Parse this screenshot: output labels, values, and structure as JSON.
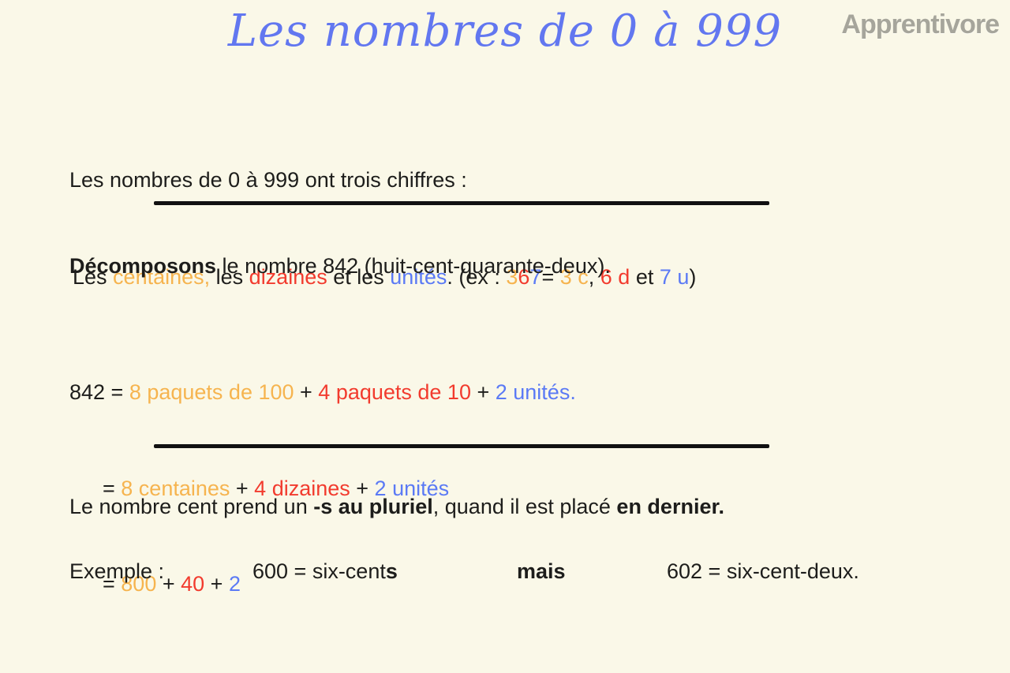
{
  "palette": {
    "background": "#FAF8E8",
    "ink": "#1d1d1b",
    "orange": "#F6B44F",
    "red": "#F23B2E",
    "blue": "#5B7AF5",
    "title_blue": "#6277F0",
    "logo_gray": "#A6A59B",
    "divider": "#111111"
  },
  "header": {
    "title": "Les nombres de 0 à 999",
    "logo": "Apprentivore"
  },
  "intro": {
    "line1": "Les nombres de 0 à 999 ont trois chiffres :",
    "line2_segments": [
      {
        "text": "Les ",
        "color": "ink"
      },
      {
        "text": "centaines,",
        "color": "orange"
      },
      {
        "text": " les ",
        "color": "ink"
      },
      {
        "text": "dizaines",
        "color": "red"
      },
      {
        "text": " et les ",
        "color": "ink"
      },
      {
        "text": "unités",
        "color": "blue"
      },
      {
        "text": ". (ex : ",
        "color": "ink"
      },
      {
        "text": "3",
        "color": "orange"
      },
      {
        "text": "6",
        "color": "red"
      },
      {
        "text": "7",
        "color": "blue"
      },
      {
        "text": "= ",
        "color": "ink"
      },
      {
        "text": "3 c",
        "color": "orange"
      },
      {
        "text": ", ",
        "color": "ink"
      },
      {
        "text": "6 d",
        "color": "red"
      },
      {
        "text": " et ",
        "color": "ink"
      },
      {
        "text": "7 u",
        "color": "blue"
      },
      {
        "text": ")",
        "color": "ink"
      }
    ]
  },
  "decomposition": {
    "heading_segments": [
      {
        "text": "Décomposons",
        "color": "ink",
        "bold": true
      },
      {
        "text": " le nombre 842 (huit-cent-quarante-deux).",
        "color": "ink"
      }
    ],
    "line1_segments": [
      {
        "text": "842 = ",
        "color": "ink"
      },
      {
        "text": "8 paquets de 100",
        "color": "orange"
      },
      {
        "text": " + ",
        "color": "ink"
      },
      {
        "text": "4 paquets de 10",
        "color": "red"
      },
      {
        "text": " + ",
        "color": "ink"
      },
      {
        "text": "2 unités.",
        "color": "blue"
      }
    ],
    "line2_segments": [
      {
        "text": "= ",
        "color": "ink"
      },
      {
        "text": "8 centaines",
        "color": "orange"
      },
      {
        "text": " + ",
        "color": "ink"
      },
      {
        "text": "4 dizaines",
        "color": "red"
      },
      {
        "text": " + ",
        "color": "ink"
      },
      {
        "text": "2 unités",
        "color": "blue"
      }
    ],
    "line3_segments": [
      {
        "text": "= ",
        "color": "ink"
      },
      {
        "text": "800",
        "color": "orange"
      },
      {
        "text": " + ",
        "color": "ink"
      },
      {
        "text": "40",
        "color": "red"
      },
      {
        "text": " + ",
        "color": "ink"
      },
      {
        "text": "2",
        "color": "blue"
      }
    ]
  },
  "rule": {
    "segments": [
      {
        "text": "Le nombre cent prend un ",
        "color": "ink"
      },
      {
        "text": "-s au pluriel",
        "color": "ink",
        "bold": true
      },
      {
        "text": ", quand il est placé ",
        "color": "ink"
      },
      {
        "text": "en dernier.",
        "color": "ink",
        "bold": true
      }
    ]
  },
  "example": {
    "label": "Exemple :",
    "first_segments": [
      {
        "text": "600 = six-cent",
        "color": "ink"
      },
      {
        "text": "s",
        "color": "ink",
        "bold": true
      }
    ],
    "conjunction": "mais",
    "second": "602 = six-cent-deux."
  }
}
